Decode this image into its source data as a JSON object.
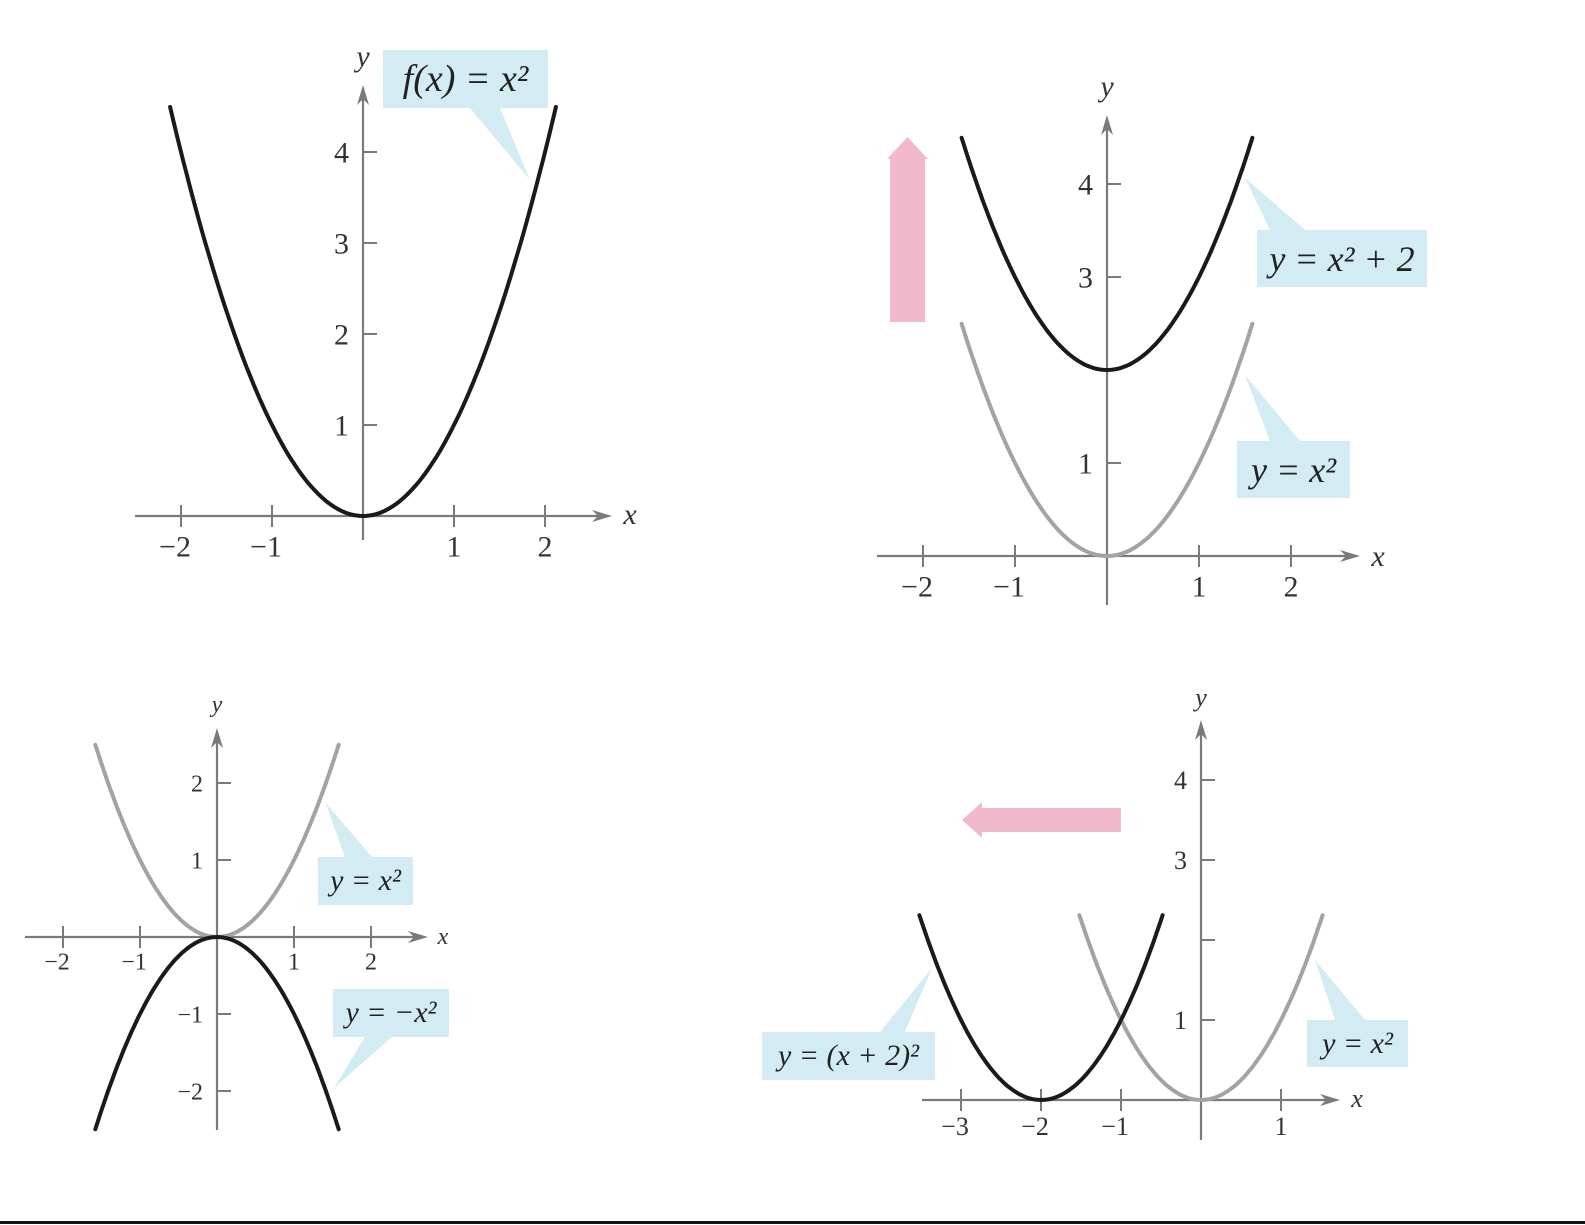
{
  "chart_data": [
    {
      "type": "line",
      "xlabel": "x",
      "ylabel": "y",
      "xticks": [
        -2,
        -1,
        1,
        2
      ],
      "yticks": [
        1,
        2,
        3,
        4
      ],
      "ytick_labels_shown": [
        1,
        2,
        3,
        4
      ],
      "series": [
        {
          "name": "f(x) = x²",
          "a": 1,
          "h": 0,
          "k": 0,
          "x_range": [
            -2.12,
            2.12
          ],
          "color": "#1a1a1a"
        }
      ],
      "shift_arrow": null
    },
    {
      "type": "line",
      "xlabel": "x",
      "ylabel": "y",
      "xticks": [
        -2,
        -1,
        1,
        2
      ],
      "yticks": [
        1,
        3,
        4
      ],
      "ytick_labels_shown": [
        1,
        3,
        4
      ],
      "series": [
        {
          "name": "y = x²",
          "a": 1,
          "h": 0,
          "k": 0,
          "x_range": [
            -1.58,
            1.58
          ],
          "color": "#a3a3a3"
        },
        {
          "name": "y = x² + 2",
          "a": 1,
          "h": 0,
          "k": 2,
          "x_range": [
            -1.58,
            1.58
          ],
          "color": "#1a1a1a"
        }
      ],
      "shift_arrow": {
        "direction": "up",
        "color": "#f2b8cb"
      }
    },
    {
      "type": "line",
      "xlabel": "x",
      "ylabel": "y",
      "xticks": [
        -2,
        -1,
        1,
        2
      ],
      "yticks": [
        -2,
        -1,
        1,
        2
      ],
      "ytick_labels_shown": [
        -2,
        -1,
        1,
        2
      ],
      "series": [
        {
          "name": "y = x²",
          "a": 1,
          "h": 0,
          "k": 0,
          "x_range": [
            -1.58,
            1.58
          ],
          "color": "#a3a3a3"
        },
        {
          "name": "y = −x²",
          "a": -1,
          "h": 0,
          "k": 0,
          "x_range": [
            -1.58,
            1.58
          ],
          "color": "#1a1a1a"
        }
      ],
      "shift_arrow": null
    },
    {
      "type": "line",
      "xlabel": "x",
      "ylabel": "y",
      "xticks": [
        -3,
        -2,
        -1,
        1
      ],
      "yticks": [
        1,
        2,
        3,
        4
      ],
      "ytick_labels_shown": [
        1,
        3,
        4
      ],
      "series": [
        {
          "name": "y = x²",
          "a": 1,
          "h": 0,
          "k": 0,
          "x_range": [
            -1.52,
            1.52
          ],
          "color": "#a3a3a3"
        },
        {
          "name": "y = (x + 2)²",
          "a": 1,
          "h": -2,
          "k": 0,
          "x_range": [
            -3.52,
            -0.48
          ],
          "color": "#1a1a1a"
        }
      ],
      "shift_arrow": {
        "direction": "left",
        "color": "#f2b8cb"
      }
    }
  ]
}
